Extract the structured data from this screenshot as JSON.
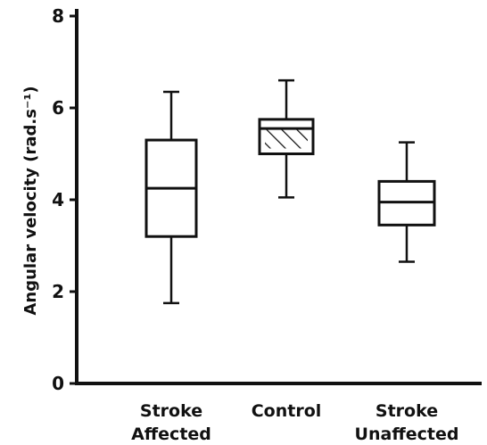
{
  "chart_data": {
    "type": "box",
    "title": "",
    "xlabel": "",
    "ylabel": "Angular velocity  (rad.s⁻¹)",
    "ylim": [
      0,
      8
    ],
    "yticks": [
      "0",
      "2",
      "4",
      "6",
      "8"
    ],
    "grid": false,
    "legend": "none",
    "categories": [
      [
        "Stroke",
        "Affected"
      ],
      [
        "Control"
      ],
      [
        "Stroke",
        "Unaffected"
      ]
    ],
    "boxes": [
      {
        "category": "Stroke Affected",
        "min": 1.75,
        "q1": 3.2,
        "median": 4.25,
        "q3": 5.3,
        "max": 6.35,
        "hatched": false
      },
      {
        "category": "Control",
        "min": 4.05,
        "q1": 5.0,
        "median": 5.55,
        "q3": 5.75,
        "max": 6.6,
        "hatched": true
      },
      {
        "category": "Stroke Unaffected",
        "min": 2.65,
        "q1": 3.45,
        "median": 3.95,
        "q3": 4.4,
        "max": 5.25,
        "hatched": false
      }
    ]
  }
}
